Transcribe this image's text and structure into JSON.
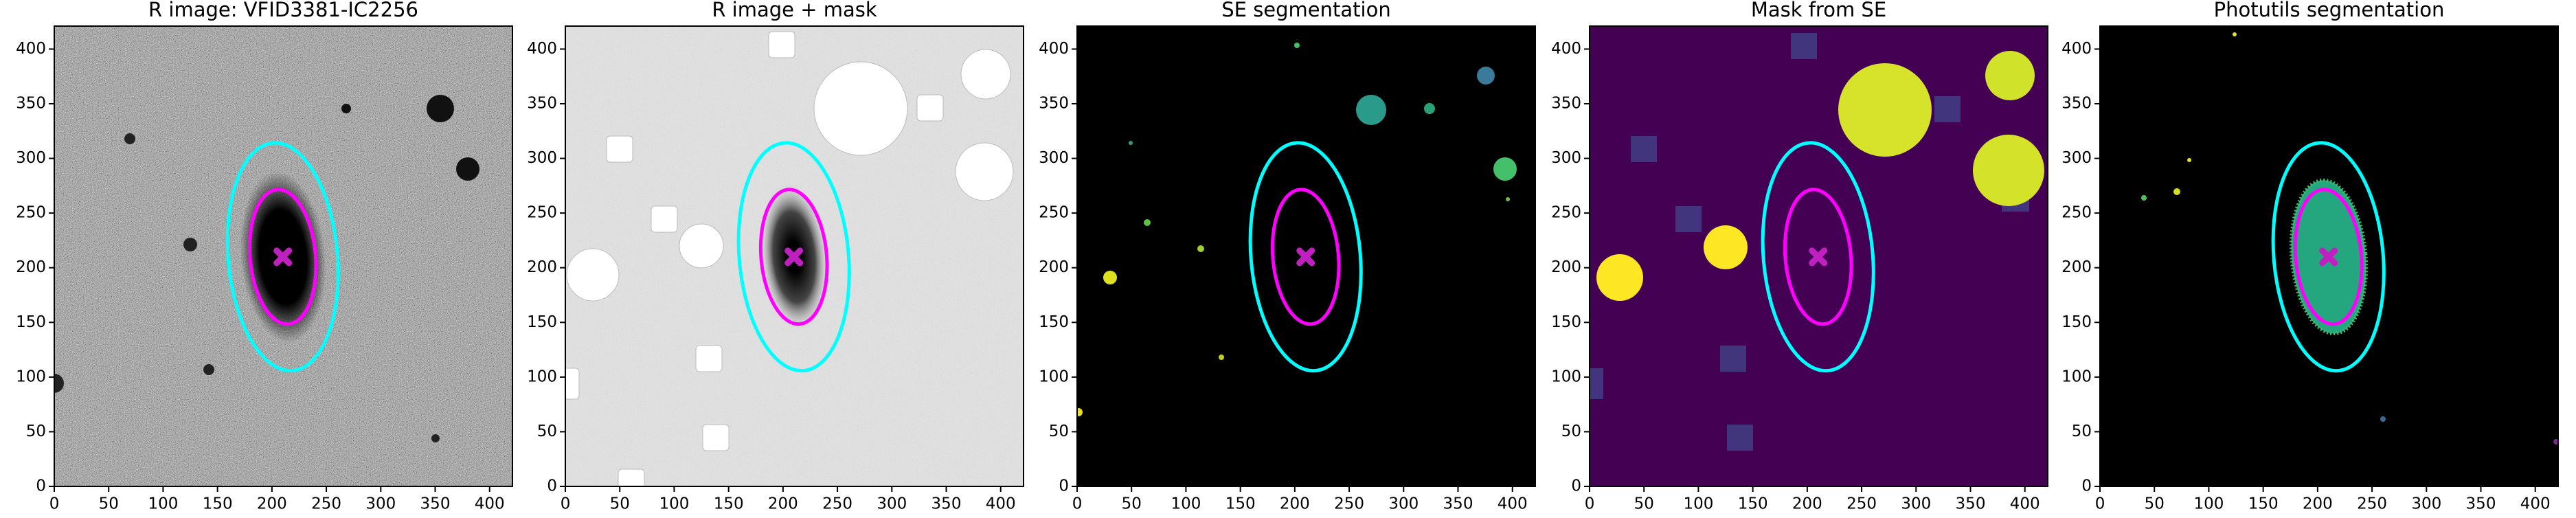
{
  "chart_data": [
    {
      "type": "image",
      "title": "R image: VFID3381-IC2256",
      "xlim": [
        0,
        421
      ],
      "ylim": [
        0,
        421
      ],
      "xticks": [
        0,
        50,
        100,
        150,
        200,
        250,
        300,
        350,
        400
      ],
      "yticks": [
        0,
        50,
        100,
        150,
        200,
        250,
        300,
        350,
        400
      ],
      "ellipses": [
        {
          "color": "#00ffff",
          "x": 210,
          "y": 210,
          "a": 105,
          "b": 50,
          "theta": 95
        },
        {
          "color": "#ff00ff",
          "x": 210,
          "y": 210,
          "a": 62,
          "b": 30,
          "theta": 95
        }
      ],
      "marker": {
        "color": "#c020c0",
        "x": 210,
        "y": 210
      }
    },
    {
      "type": "image",
      "title": "R image + mask",
      "xlim": [
        0,
        421
      ],
      "ylim": [
        0,
        421
      ],
      "xticks": [
        0,
        50,
        100,
        150,
        200,
        250,
        300,
        350,
        400
      ],
      "yticks": [
        0,
        50,
        100,
        150,
        200,
        250,
        300,
        350,
        400
      ],
      "ellipses": [
        {
          "color": "#00ffff",
          "x": 210,
          "y": 210,
          "a": 105,
          "b": 50,
          "theta": 95
        },
        {
          "color": "#ff00ff",
          "x": 210,
          "y": 210,
          "a": 62,
          "b": 30,
          "theta": 95
        }
      ],
      "marker": {
        "color": "#c020c0",
        "x": 210,
        "y": 210
      }
    },
    {
      "type": "image",
      "title": "SE segmentation",
      "xlim": [
        0,
        421
      ],
      "ylim": [
        0,
        421
      ],
      "xticks": [
        0,
        50,
        100,
        150,
        200,
        250,
        300,
        350,
        400
      ],
      "yticks": [
        0,
        50,
        100,
        150,
        200,
        250,
        300,
        350,
        400
      ],
      "ellipses": [
        {
          "color": "#00ffff",
          "x": 210,
          "y": 210,
          "a": 105,
          "b": 50,
          "theta": 95
        },
        {
          "color": "#ff00ff",
          "x": 210,
          "y": 210,
          "a": 62,
          "b": 30,
          "theta": 95
        }
      ],
      "marker": {
        "color": "#c020c0",
        "x": 210,
        "y": 210
      }
    },
    {
      "type": "image",
      "title": "Mask from SE",
      "xlim": [
        0,
        421
      ],
      "ylim": [
        0,
        421
      ],
      "xticks": [
        0,
        50,
        100,
        150,
        200,
        250,
        300,
        350,
        400
      ],
      "yticks": [
        0,
        50,
        100,
        150,
        200,
        250,
        300,
        350,
        400
      ],
      "ellipses": [
        {
          "color": "#00ffff",
          "x": 210,
          "y": 210,
          "a": 105,
          "b": 50,
          "theta": 95
        },
        {
          "color": "#ff00ff",
          "x": 210,
          "y": 210,
          "a": 62,
          "b": 30,
          "theta": 95
        }
      ],
      "marker": {
        "color": "#c020c0",
        "x": 210,
        "y": 210
      }
    },
    {
      "type": "image",
      "title": "Photutils segmentation",
      "xlim": [
        0,
        421
      ],
      "ylim": [
        0,
        421
      ],
      "xticks": [
        0,
        50,
        100,
        150,
        200,
        250,
        300,
        350,
        400
      ],
      "yticks": [
        0,
        50,
        100,
        150,
        200,
        250,
        300,
        350,
        400
      ],
      "ellipses": [
        {
          "color": "#00ffff",
          "x": 210,
          "y": 210,
          "a": 105,
          "b": 50,
          "theta": 95
        },
        {
          "color": "#ff00ff",
          "x": 210,
          "y": 210,
          "a": 62,
          "b": 30,
          "theta": 95
        }
      ],
      "marker": {
        "color": "#c020c0",
        "x": 210,
        "y": 210
      }
    }
  ]
}
